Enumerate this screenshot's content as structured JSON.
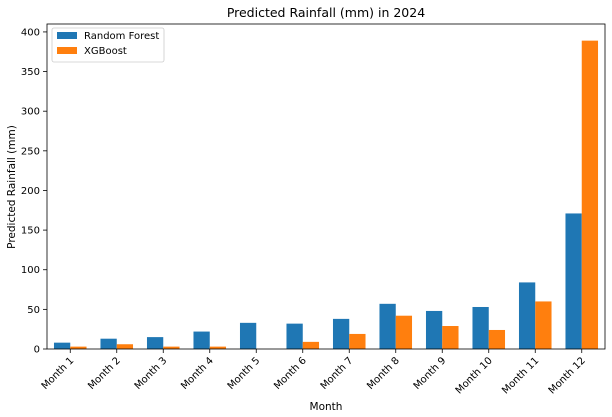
{
  "chart_data": {
    "type": "bar",
    "title": "Predicted Rainfall (mm) in 2024",
    "xlabel": "Month",
    "ylabel": "Predicted Rainfall (mm)",
    "categories": [
      "Month 1",
      "Month 2",
      "Month 3",
      "Month 4",
      "Month 5",
      "Month 6",
      "Month 7",
      "Month 8",
      "Month 9",
      "Month 10",
      "Month 11",
      "Month 12"
    ],
    "ylim": [
      0,
      410
    ],
    "yticks": [
      0,
      50,
      100,
      150,
      200,
      250,
      300,
      350,
      400
    ],
    "grid": false,
    "legend_position": "top-left",
    "series": [
      {
        "name": "Random Forest",
        "color": "#1f77b4",
        "values": [
          8,
          13,
          15,
          22,
          33,
          32,
          38,
          57,
          48,
          53,
          84,
          171
        ]
      },
      {
        "name": "XGBoost",
        "color": "#ff7f0e",
        "values": [
          3,
          6,
          3,
          3,
          0,
          9,
          19,
          42,
          29,
          24,
          60,
          389
        ]
      }
    ]
  }
}
